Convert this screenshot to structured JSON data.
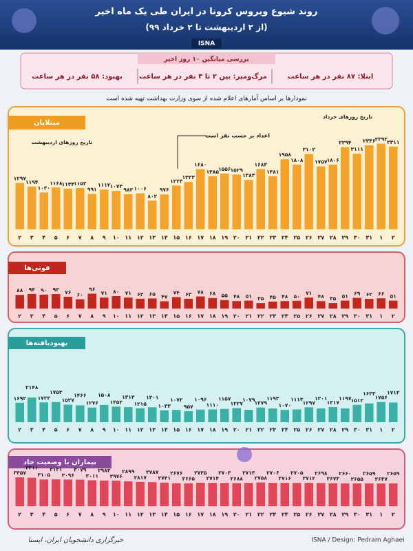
{
  "header": {
    "title": "روند شیوع ویروس کرونا در ایران طی یک ماه اخیر",
    "subtitle": "(از ۲ اردیبهشت تا ۲ خرداد ۹۹)",
    "brand": "ISNA"
  },
  "summary": {
    "title": "بررسی میانگین ۱۰ روز اخیر",
    "infected": "ابتلا: ۸۷ نفر در هر ساعت",
    "deaths": "مرگ‌ومیر: بین ۲ تا ۳ نفر در هر ساعت",
    "recovered": "بهبود: ۵۸ نفر در هر ساعت"
  },
  "note": "نمودارها بر اساس آمارهای اعلام شده از سوی وزارت بهداشت تهیه شده است",
  "annotations": {
    "ordibehesht": "تاریخ روزهای اردیبهشت",
    "khordad": "تاریخ روزهای خرداد",
    "unit": "اعداد بر حسب نفر است"
  },
  "chart_data": [
    {
      "type": "bar",
      "title": "مبتلایان",
      "color": "#f3a42c",
      "ylim": [
        0,
        2500
      ],
      "categories": [
        "۲",
        "۳",
        "۴",
        "۵",
        "۶",
        "۷",
        "۸",
        "۹",
        "۱۰",
        "۱۱",
        "۱۲",
        "۱۳",
        "۱۴",
        "۱۵",
        "۱۶",
        "۱۷",
        "۱۸",
        "۱۹",
        "۲۰",
        "۲۱",
        "۲۲",
        "۲۳",
        "۲۴",
        "۲۵",
        "۲۶",
        "۲۷",
        "۲۸",
        "۲۹",
        "۳۰",
        "۳۱",
        "۱",
        "۲"
      ],
      "values": [
        1297,
        1194,
        1030,
        1168,
        1134,
        1153,
        991,
        1112,
        1073,
        983,
        1006,
        802,
        976,
        1223,
        1323,
        1680,
        1485,
        1556,
        1529,
        1383,
        1683,
        1481,
        1958,
        1808,
        2102,
        1757,
        1806,
        2294,
        2111,
        2346,
        2392,
        2311
      ],
      "value_labels": [
        "۱۲۹۷",
        "۱۱۹۴",
        "۱۰۳۰",
        "۱۱۶۸",
        "۱۱۳۴",
        "۱۱۵۳",
        "۹۹۱",
        "۱۱۱۲",
        "۱۰۷۳",
        "۹۸۳",
        "۱۰۰۶",
        "۸۰۲",
        "۹۷۶",
        "۱۲۲۳",
        "۱۳۲۳",
        "۱۶۸۰",
        "۱۴۸۵",
        "۱۵۵۶",
        "۱۵۲۹",
        "۱۳۸۳",
        "۱۶۸۳",
        "۱۴۸۱",
        "۱۹۵۸",
        "۱۸۰۸",
        "۲۱۰۲",
        "۱۷۵۷",
        "۱۸۰۶",
        "۲۲۹۴",
        "۲۱۱۱",
        "۲۳۴۶",
        "۲۳۹۲",
        "۲۳۱۱"
      ]
    },
    {
      "type": "bar",
      "title": "فوتی‌ها",
      "color": "#c0281e",
      "ylim": [
        0,
        400
      ],
      "values": [
        88,
        94,
        90,
        93,
        76,
        60,
        96,
        71,
        80,
        71,
        63,
        65,
        47,
        74,
        63,
        78,
        68,
        55,
        48,
        51,
        35,
        45,
        48,
        50,
        71,
        48,
        35,
        51,
        69,
        62,
        66,
        51
      ],
      "value_labels": [
        "۸۸",
        "۹۴",
        "۹۰",
        "۹۳",
        "۷۶",
        "۶۰",
        "۹۶",
        "۷۱",
        "۸۰",
        "۷۱",
        "۶۳",
        "۶۵",
        "۴۷",
        "۷۴",
        "۶۳",
        "۷۸",
        "۶۸",
        "۵۵",
        "۴۸",
        "۵۱",
        "۳۵",
        "۴۵",
        "۴۸",
        "۵۰",
        "۷۱",
        "۴۸",
        "۳۵",
        "۵۱",
        "۶۹",
        "۶۲",
        "۶۶",
        "۵۱"
      ]
    },
    {
      "type": "bar",
      "title": "بهبودیافته‌ها",
      "color": "#3bb0a6",
      "ylim": [
        0,
        6000
      ],
      "values": [
        1692,
        2148,
        1723,
        1753,
        1527,
        1466,
        1276,
        1508,
        1352,
        1313,
        1215,
        1301,
        1033,
        1072,
        957,
        1096,
        1110,
        1157,
        1227,
        1079,
        1279,
        1193,
        1070,
        1113,
        1297,
        1201,
        1317,
        1197,
        1512,
        1633,
        1756,
        1712
      ],
      "value_labels": [
        "۱۶۹۲",
        "۲۱۴۸",
        "۱۷۲۳",
        "۱۷۵۳",
        "۱۵۲۷",
        "۱۴۶۶",
        "۱۲۷۶",
        "۱۵۰۸",
        "۱۳۵۲",
        "۱۳۱۳",
        "۱۲۱۵",
        "۱۳۰۱",
        "۱۰۳۳",
        "۱۰۷۲",
        "۹۵۷",
        "۱۰۹۶",
        "۱۱۱۰",
        "۱۱۵۷",
        "۱۲۲۷",
        "۱۰۷۹",
        "۱۲۷۹",
        "۱۱۹۳",
        "۱۰۷۰",
        "۱۱۱۳",
        "۱۲۹۷",
        "۱۲۰۱",
        "۱۳۱۷",
        "۱۱۹۷",
        "۱۵۱۲",
        "۱۶۳۳",
        "۱۷۵۶",
        "۱۷۱۲"
      ]
    },
    {
      "type": "bar",
      "title": "بیماران با وضعیت حاد",
      "color": "#e0465a",
      "ylim": [
        0,
        8000
      ],
      "values": [
        3357,
        3311,
        3105,
        3121,
        3096,
        3079,
        3011,
        2983,
        2976,
        2899,
        2817,
        2787,
        2741,
        2676,
        2665,
        2735,
        2714,
        2703,
        2688,
        2713,
        2758,
        2706,
        2716,
        2705,
        2712,
        2698,
        2673,
        2660,
        2655,
        2659,
        2647,
        2659
      ],
      "value_labels": [
        "۳۳۵۷",
        "۳۳۱۱",
        "۳۱۰۵",
        "۳۱۲۱",
        "۳۰۹۶",
        "۳۰۷۹",
        "۳۰۱۱",
        "۲۹۸۳",
        "۲۹۷۶",
        "۲۸۹۹",
        "۲۸۱۷",
        "۲۷۸۷",
        "۲۷۴۱",
        "۲۶۷۶",
        "۲۶۶۵",
        "۲۷۳۵",
        "۲۷۱۴",
        "۲۷۰۳",
        "۲۶۸۸",
        "۲۷۱۳",
        "۲۷۵۸",
        "۲۷۰۶",
        "۲۷۱۶",
        "۲۷۰۵",
        "۲۷۱۲",
        "۲۶۹۸",
        "۲۶۷۳",
        "۲۶۶۰",
        "۲۶۵۵",
        "۲۶۵۹",
        "۲۶۴۷",
        "۲۶۵۹"
      ]
    }
  ],
  "footer": {
    "agency": "خبرگزاری دانشجویان ایران، ایسنا",
    "credit": "ISNA / Design: Pedram Aghaei"
  }
}
